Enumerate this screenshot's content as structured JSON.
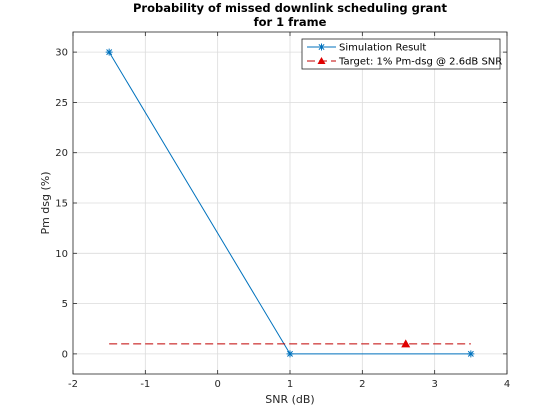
{
  "chart_data": {
    "type": "line",
    "title": [
      "Probability of missed downlink scheduling grant",
      "for 1 frame"
    ],
    "xlabel": "SNR (dB)",
    "ylabel": "Pm dsg (%)",
    "xlim": [
      -2,
      4
    ],
    "ylim": [
      -2,
      32
    ],
    "xticks": [
      -2,
      -1,
      0,
      1,
      2,
      3,
      4
    ],
    "yticks": [
      0,
      5,
      10,
      15,
      20,
      25,
      30
    ],
    "grid": true,
    "legend_position": "top-right",
    "series": [
      {
        "name": "Simulation Result",
        "x": [
          -1.5,
          1,
          3.5
        ],
        "y": [
          30,
          0,
          0
        ],
        "color": "#0072BD",
        "style": "solid",
        "marker": "asterisk"
      },
      {
        "name": "Target: 1% Pm-dsg @ 2.6dB SNR",
        "x": [
          -1.5,
          3.5
        ],
        "y": [
          1,
          1
        ],
        "color": "#C00000",
        "style": "dashed",
        "marker": "none"
      },
      {
        "name": "Target: 1% Pm-dsg @ 2.6dB SNR",
        "x": [
          2.6
        ],
        "y": [
          1
        ],
        "color": "#E00000",
        "style": "none",
        "marker": "triangle"
      }
    ]
  }
}
